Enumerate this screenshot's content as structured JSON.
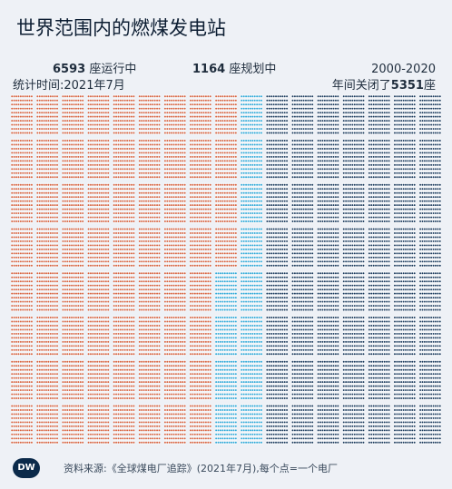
{
  "title": "世界范围内的燃煤发电站",
  "labels": {
    "running_value": "6593",
    "running_text": "座运行中",
    "as_of": "统计时间:2021年7月",
    "planned_value": "1164",
    "planned_text": "座规划中",
    "closed_years": "2000-2020",
    "closed_prefix": "年间关闭了",
    "closed_value": "5351",
    "closed_suffix": "座"
  },
  "source": "资料来源:《全球煤电厂追踪》(2021年7月),每个点=一个电厂",
  "logo": "DW",
  "colors": {
    "running": "#d9603b",
    "planned": "#2aa8d8",
    "closed": "#1a3a5c"
  },
  "chart_data": {
    "type": "waffle",
    "unit": "每个点=一个电厂",
    "categories": [
      "运行中",
      "规划中",
      "2000-2020年间关闭"
    ],
    "values": [
      6593,
      1164,
      5351
    ]
  }
}
